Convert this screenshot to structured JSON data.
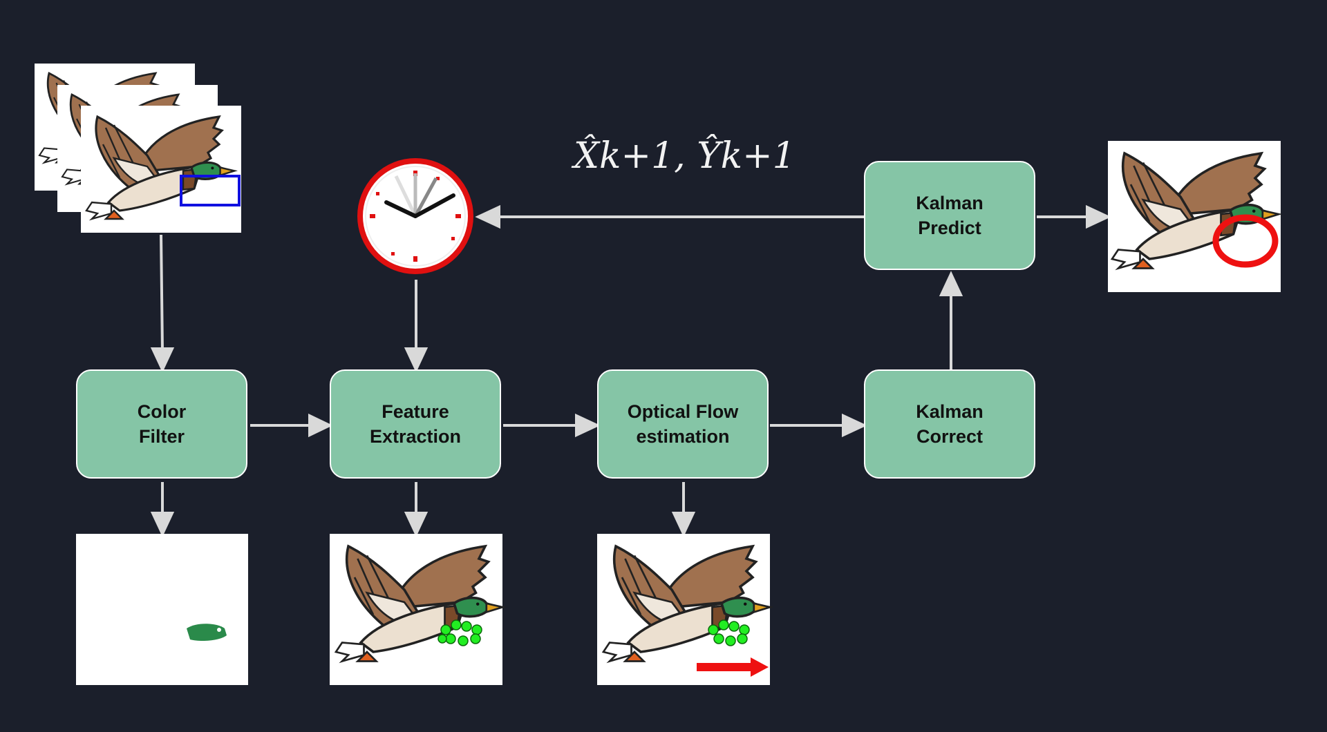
{
  "boxes": {
    "color_filter": [
      "Color",
      "Filter"
    ],
    "feature_extraction": [
      "Feature",
      "Extraction"
    ],
    "optical_flow": [
      "Optical Flow",
      "estimation"
    ],
    "kalman_correct": [
      "Kalman",
      "Correct"
    ],
    "kalman_predict": [
      "Kalman",
      "Predict"
    ]
  },
  "formula": "X̂k+1, Ŷk+1",
  "icons": {
    "clock": "clock-icon",
    "duck": "duck-illustration"
  },
  "colors": {
    "background": "#1b1f2b",
    "box_fill": "#85c5a6",
    "arrow": "#d9d9d9",
    "clock_rim": "#e01010",
    "bbox_blue": "#1010e0",
    "feature_points": "#22ee22",
    "motion_arrow": "#ee1111",
    "prediction_ring": "#ee1111"
  }
}
